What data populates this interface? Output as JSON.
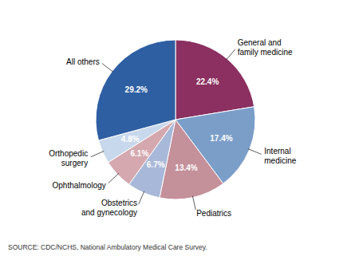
{
  "chart_data": {
    "type": "pie",
    "categories": [
      "General and\nfamily medicine",
      "Internal\nmedicine",
      "Pediatrics",
      "Obstetrics\nand gynecology",
      "Ophthalmology",
      "Orthopedic\nsurgery",
      "All others"
    ],
    "values": [
      22.4,
      17.4,
      13.4,
      6.7,
      6.1,
      4.8,
      29.2
    ],
    "value_labels": [
      "22.4%",
      "17.4%",
      "13.4%",
      "6.7%",
      "6.1%",
      "4.8%",
      "29.2%"
    ],
    "data_labels": true,
    "colors": [
      "#8B3060",
      "#7B9EC9",
      "#C4909A",
      "#A8B8D8",
      "#D4A8AE",
      "#C8D8EC",
      "#2E5FA3"
    ],
    "annotations": [
      "SOURCE: CDC/NCHS, National Ambulatory Medical Care Survey."
    ]
  }
}
